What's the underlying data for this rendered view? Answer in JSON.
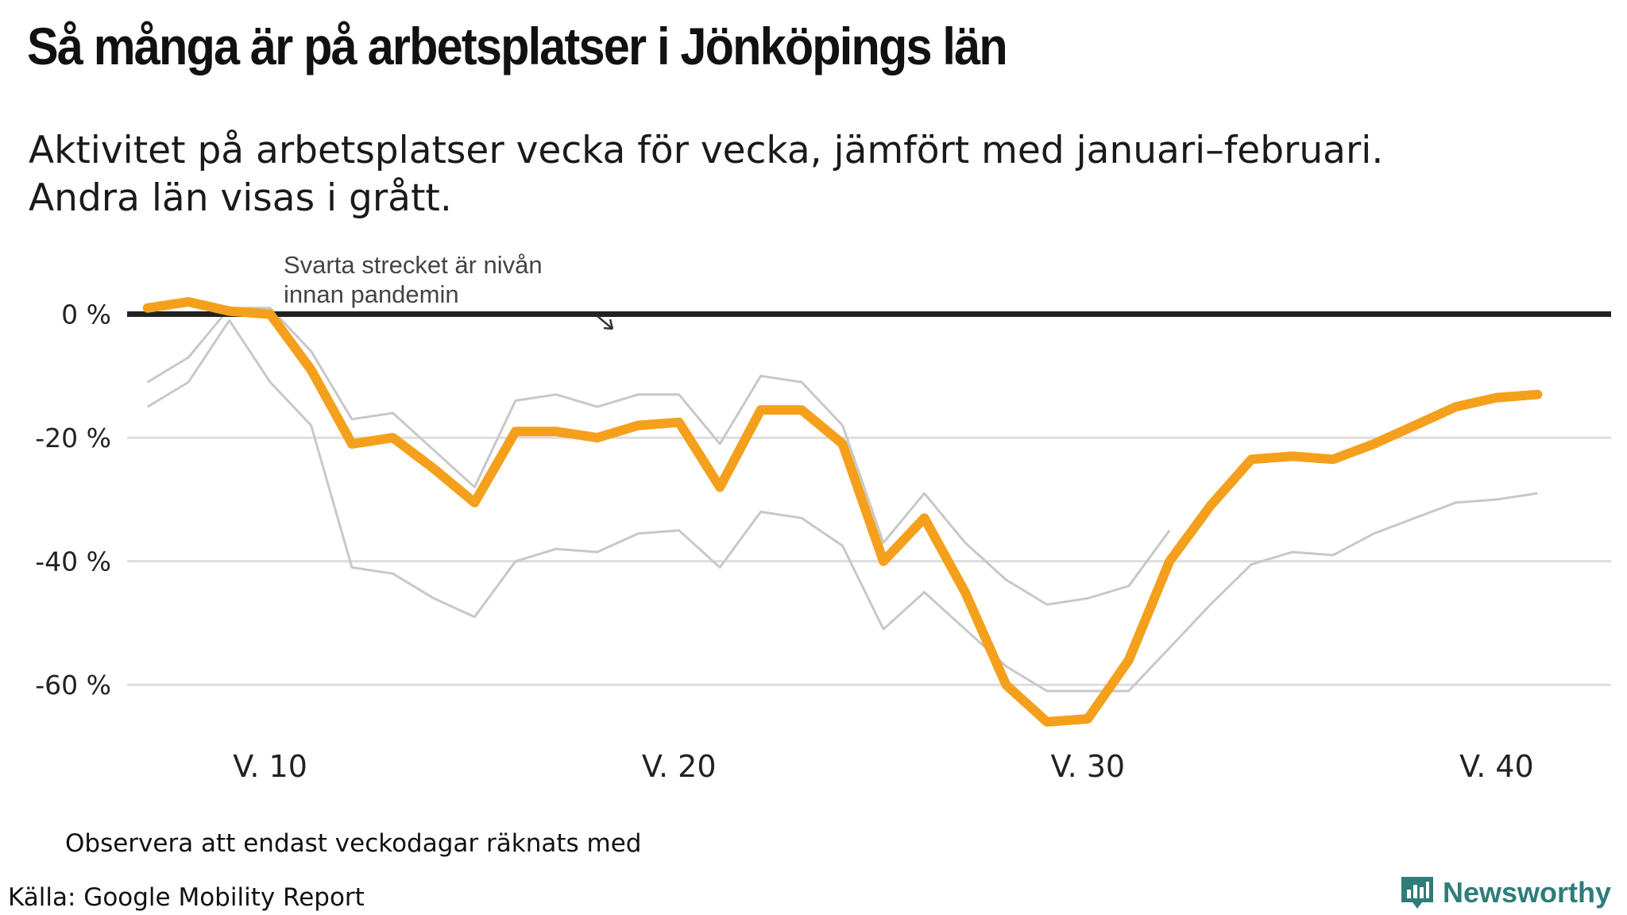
{
  "title": "Så många är på arbetsplatser i Jönköpings län",
  "subtitle_lines": [
    "Aktivitet på arbetsplatser vecka för vecka, jämfört med januari–februari.",
    "Andra län visas i grått."
  ],
  "note": "Observera att endast veckodagar räknats med",
  "source": "Källa: Google Mobility Report",
  "logo_text": "Newsworthy",
  "colors": {
    "highlight": "#f5a01c",
    "others": "#c8c8c8",
    "baseline": "#222222",
    "grid": "#dddddd",
    "brand": "#2e7d7a"
  },
  "chart_data": {
    "type": "line",
    "annotation": {
      "lines": [
        "Svarta strecket är nivån",
        "innan pandemin"
      ],
      "points_to_value": 0
    },
    "x": [
      7,
      8,
      9,
      10,
      11,
      12,
      13,
      14,
      15,
      16,
      17,
      18,
      19,
      20,
      21,
      22,
      23,
      24,
      25,
      26,
      27,
      28,
      29,
      30,
      31,
      32,
      33,
      34,
      35,
      36,
      37,
      38,
      39,
      40,
      41
    ],
    "x_ticks": [
      10,
      20,
      30,
      40
    ],
    "x_tick_labels": [
      "V. 10",
      "V. 20",
      "V. 30",
      "V. 40"
    ],
    "y_ticks": [
      0,
      -20,
      -40,
      -60
    ],
    "y_tick_labels": [
      "0 %",
      "-20 %",
      "-40 %",
      "-60 %"
    ],
    "xlim": [
      6.5,
      42.8
    ],
    "ylim": [
      -70,
      2
    ],
    "baseline": 0,
    "highlight": {
      "name": "Jönköpings län",
      "values": [
        1,
        2,
        0.5,
        0,
        -9,
        -21,
        -20,
        -25,
        -30.5,
        -19,
        -19,
        -20,
        -18,
        -17.5,
        -28,
        -15.5,
        -15.5,
        -21,
        -40,
        -33,
        -45,
        -60,
        -66,
        -65.5,
        -56,
        -40,
        -31,
        -23.5,
        -23,
        -23.5,
        -21,
        -18,
        -15,
        -13.5,
        -13
      ]
    },
    "others": [
      [
        -11,
        -7,
        1,
        1,
        -6,
        -17,
        -16,
        -22,
        -28,
        -14,
        -13,
        -15,
        -13,
        -13,
        -21,
        -10,
        -11,
        -18,
        -37,
        -29,
        -37,
        -43,
        -47,
        -46,
        -44,
        -35,
        null,
        null,
        null,
        null,
        null,
        null,
        null,
        null,
        null
      ],
      [
        -15,
        -11,
        -1,
        -11,
        -18,
        -41,
        -42,
        -46,
        -49,
        -40,
        -38,
        -38.5,
        -35.5,
        -35,
        -41,
        -32,
        -33,
        -37.5,
        -51,
        -45,
        -51,
        -57,
        -61,
        -61,
        -61,
        -54,
        -47,
        -40.5,
        -38.5,
        -39,
        -35.5,
        -33,
        -30.5,
        -30,
        -29
      ]
    ]
  }
}
